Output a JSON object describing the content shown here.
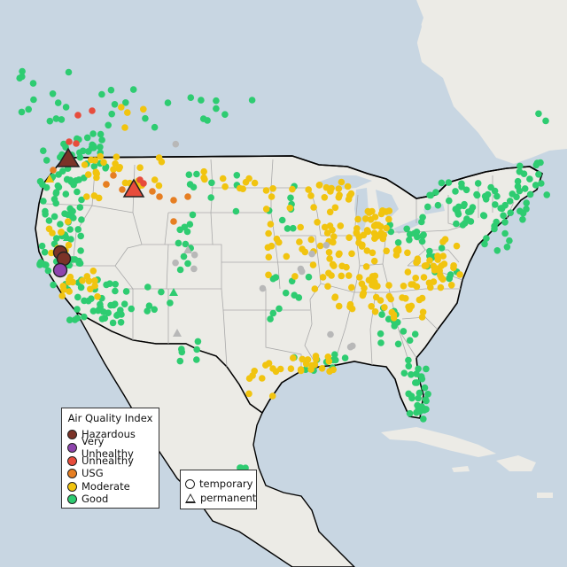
{
  "map": {
    "background": "#c8d6e2",
    "land_color": "#ecebe6",
    "border_color": "#000000",
    "state_border_color": "#aaaaaa"
  },
  "legend": {
    "title": "Air Quality Index",
    "categories": [
      {
        "label": "Hazardous",
        "color": "#7b3328"
      },
      {
        "label": "Very Unhealthy",
        "color": "#8e44ad"
      },
      {
        "label": "Unhealthy",
        "color": "#e74c3c"
      },
      {
        "label": "USG",
        "color": "#e67e22"
      },
      {
        "label": "Moderate",
        "color": "#f1c40f"
      },
      {
        "label": "Good",
        "color": "#2ecc71"
      }
    ]
  },
  "type_legend": {
    "temporary_label": "temporary",
    "permanent_label": "permanent"
  },
  "no_data_color": "#b8b8b8"
}
